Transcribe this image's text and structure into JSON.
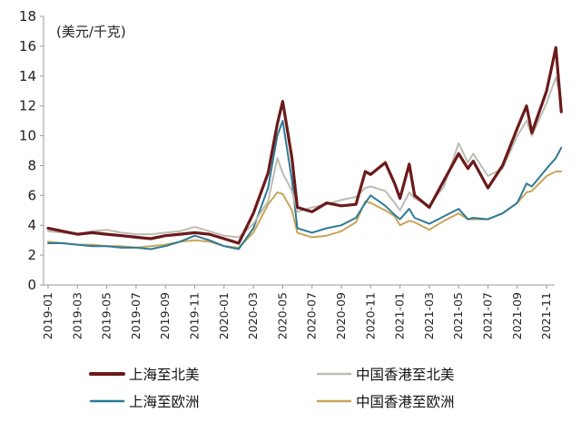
{
  "chart_data": {
    "type": "line",
    "unit_label": "(美元/千克)",
    "y_ticks": [
      0,
      2,
      4,
      6,
      8,
      10,
      12,
      14,
      16,
      18
    ],
    "ylim": [
      0,
      18
    ],
    "x_tick_labels": [
      "2019-01",
      "2019-03",
      "2019-05",
      "2019-07",
      "2019-09",
      "2019-11",
      "2020-01",
      "2020-03",
      "2020-05",
      "2020-07",
      "2020-09",
      "2020-11",
      "2021-01",
      "2021-03",
      "2021-05",
      "2021-07",
      "2021-09",
      "2021-11"
    ],
    "x_range": [
      "2019-01",
      "2021-12"
    ],
    "grid": false,
    "legend_position": "bottom",
    "series": [
      {
        "name": "上海至北美",
        "color": "#6b1a1a",
        "points": [
          [
            "2019-01",
            3.8
          ],
          [
            "2019-02",
            3.6
          ],
          [
            "2019-03",
            3.4
          ],
          [
            "2019-04",
            3.5
          ],
          [
            "2019-05",
            3.4
          ],
          [
            "2019-06",
            3.3
          ],
          [
            "2019-07",
            3.2
          ],
          [
            "2019-08",
            3.1
          ],
          [
            "2019-09",
            3.3
          ],
          [
            "2019-10",
            3.4
          ],
          [
            "2019-11",
            3.5
          ],
          [
            "2019-12",
            3.4
          ],
          [
            "2020-01",
            3.1
          ],
          [
            "2020-02",
            2.8
          ],
          [
            "2020-03",
            4.8
          ],
          [
            "2020-04",
            7.5
          ],
          [
            "2020-04-20",
            10.8
          ],
          [
            "2020-05",
            12.3
          ],
          [
            "2020-05-20",
            8.5
          ],
          [
            "2020-06",
            5.2
          ],
          [
            "2020-07",
            4.9
          ],
          [
            "2020-08",
            5.5
          ],
          [
            "2020-09",
            5.3
          ],
          [
            "2020-10",
            5.4
          ],
          [
            "2020-10-20",
            7.6
          ],
          [
            "2020-11",
            7.4
          ],
          [
            "2020-12",
            8.2
          ],
          [
            "2020-12-20",
            6.8
          ],
          [
            "2021-01",
            5.8
          ],
          [
            "2021-01-20",
            8.1
          ],
          [
            "2021-02",
            6.0
          ],
          [
            "2021-03",
            5.2
          ],
          [
            "2021-04",
            7.0
          ],
          [
            "2021-05",
            8.8
          ],
          [
            "2021-05-20",
            7.8
          ],
          [
            "2021-06",
            8.3
          ],
          [
            "2021-07",
            6.5
          ],
          [
            "2021-08",
            8.0
          ],
          [
            "2021-09",
            10.5
          ],
          [
            "2021-09-20",
            12.0
          ],
          [
            "2021-10",
            10.2
          ],
          [
            "2021-11",
            13.0
          ],
          [
            "2021-11-20",
            15.9
          ],
          [
            "2021-12",
            11.6
          ]
        ]
      },
      {
        "name": "中国香港至北美",
        "color": "#bcbcb2",
        "points": [
          [
            "2019-01",
            3.6
          ],
          [
            "2019-02",
            3.5
          ],
          [
            "2019-03",
            3.4
          ],
          [
            "2019-04",
            3.6
          ],
          [
            "2019-05",
            3.7
          ],
          [
            "2019-06",
            3.5
          ],
          [
            "2019-07",
            3.4
          ],
          [
            "2019-08",
            3.4
          ],
          [
            "2019-09",
            3.5
          ],
          [
            "2019-10",
            3.6
          ],
          [
            "2019-11",
            3.9
          ],
          [
            "2019-12",
            3.6
          ],
          [
            "2020-01",
            3.3
          ],
          [
            "2020-02",
            3.2
          ],
          [
            "2020-03",
            4.1
          ],
          [
            "2020-04",
            5.6
          ],
          [
            "2020-04-20",
            8.5
          ],
          [
            "2020-05",
            7.5
          ],
          [
            "2020-05-20",
            6.3
          ],
          [
            "2020-06",
            4.9
          ],
          [
            "2020-07",
            5.2
          ],
          [
            "2020-08",
            5.4
          ],
          [
            "2020-09",
            5.7
          ],
          [
            "2020-10",
            5.9
          ],
          [
            "2020-10-20",
            6.5
          ],
          [
            "2020-11",
            6.6
          ],
          [
            "2020-12",
            6.3
          ],
          [
            "2020-12-20",
            5.5
          ],
          [
            "2021-01",
            5.0
          ],
          [
            "2021-01-20",
            6.2
          ],
          [
            "2021-02",
            5.8
          ],
          [
            "2021-03",
            5.3
          ],
          [
            "2021-04",
            6.6
          ],
          [
            "2021-05",
            9.5
          ],
          [
            "2021-05-20",
            8.2
          ],
          [
            "2021-06",
            8.8
          ],
          [
            "2021-07",
            7.3
          ],
          [
            "2021-08",
            7.8
          ],
          [
            "2021-09",
            10.0
          ],
          [
            "2021-09-20",
            11.0
          ],
          [
            "2021-10",
            10.0
          ],
          [
            "2021-11",
            12.2
          ],
          [
            "2021-11-20",
            13.9
          ],
          [
            "2021-12",
            12.4
          ]
        ]
      },
      {
        "name": "上海至欧洲",
        "color": "#2e7a96",
        "points": [
          [
            "2019-01",
            2.8
          ],
          [
            "2019-02",
            2.8
          ],
          [
            "2019-03",
            2.7
          ],
          [
            "2019-04",
            2.6
          ],
          [
            "2019-05",
            2.6
          ],
          [
            "2019-06",
            2.5
          ],
          [
            "2019-07",
            2.5
          ],
          [
            "2019-08",
            2.4
          ],
          [
            "2019-09",
            2.6
          ],
          [
            "2019-10",
            2.9
          ],
          [
            "2019-11",
            3.3
          ],
          [
            "2019-12",
            3.0
          ],
          [
            "2020-01",
            2.6
          ],
          [
            "2020-02",
            2.4
          ],
          [
            "2020-03",
            3.8
          ],
          [
            "2020-04",
            6.5
          ],
          [
            "2020-04-20",
            10.0
          ],
          [
            "2020-05",
            11.0
          ],
          [
            "2020-05-20",
            7.0
          ],
          [
            "2020-06",
            3.8
          ],
          [
            "2020-07",
            3.5
          ],
          [
            "2020-08",
            3.8
          ],
          [
            "2020-09",
            4.0
          ],
          [
            "2020-10",
            4.5
          ],
          [
            "2020-10-20",
            5.5
          ],
          [
            "2020-11",
            6.0
          ],
          [
            "2020-12",
            5.3
          ],
          [
            "2020-12-20",
            4.7
          ],
          [
            "2021-01",
            4.4
          ],
          [
            "2021-01-20",
            5.1
          ],
          [
            "2021-02",
            4.5
          ],
          [
            "2021-03",
            4.1
          ],
          [
            "2021-04",
            4.6
          ],
          [
            "2021-05",
            5.1
          ],
          [
            "2021-05-20",
            4.4
          ],
          [
            "2021-06",
            4.5
          ],
          [
            "2021-07",
            4.4
          ],
          [
            "2021-08",
            4.8
          ],
          [
            "2021-09",
            5.5
          ],
          [
            "2021-09-20",
            6.8
          ],
          [
            "2021-10",
            6.6
          ],
          [
            "2021-11",
            7.8
          ],
          [
            "2021-11-20",
            8.5
          ],
          [
            "2021-12",
            9.2
          ]
        ]
      },
      {
        "name": "中国香港至欧洲",
        "color": "#c9a55a",
        "points": [
          [
            "2019-01",
            2.9
          ],
          [
            "2019-02",
            2.8
          ],
          [
            "2019-03",
            2.7
          ],
          [
            "2019-04",
            2.7
          ],
          [
            "2019-05",
            2.6
          ],
          [
            "2019-06",
            2.6
          ],
          [
            "2019-07",
            2.5
          ],
          [
            "2019-08",
            2.6
          ],
          [
            "2019-09",
            2.7
          ],
          [
            "2019-10",
            2.9
          ],
          [
            "2019-11",
            3.0
          ],
          [
            "2019-12",
            2.9
          ],
          [
            "2020-01",
            2.6
          ],
          [
            "2020-02",
            2.5
          ],
          [
            "2020-03",
            3.5
          ],
          [
            "2020-04",
            5.4
          ],
          [
            "2020-04-20",
            6.2
          ],
          [
            "2020-05",
            6.1
          ],
          [
            "2020-05-20",
            5.0
          ],
          [
            "2020-06",
            3.5
          ],
          [
            "2020-07",
            3.2
          ],
          [
            "2020-08",
            3.3
          ],
          [
            "2020-09",
            3.6
          ],
          [
            "2020-10",
            4.2
          ],
          [
            "2020-10-20",
            5.6
          ],
          [
            "2020-11",
            5.5
          ],
          [
            "2020-12",
            5.0
          ],
          [
            "2020-12-20",
            4.6
          ],
          [
            "2021-01",
            4.0
          ],
          [
            "2021-01-20",
            4.3
          ],
          [
            "2021-02",
            4.2
          ],
          [
            "2021-03",
            3.7
          ],
          [
            "2021-04",
            4.3
          ],
          [
            "2021-05",
            4.8
          ],
          [
            "2021-05-20",
            4.4
          ],
          [
            "2021-06",
            4.4
          ],
          [
            "2021-07",
            4.4
          ],
          [
            "2021-08",
            4.8
          ],
          [
            "2021-09",
            5.5
          ],
          [
            "2021-09-20",
            6.2
          ],
          [
            "2021-10",
            6.3
          ],
          [
            "2021-11",
            7.3
          ],
          [
            "2021-11-20",
            7.6
          ],
          [
            "2021-12",
            7.6
          ]
        ]
      }
    ]
  }
}
